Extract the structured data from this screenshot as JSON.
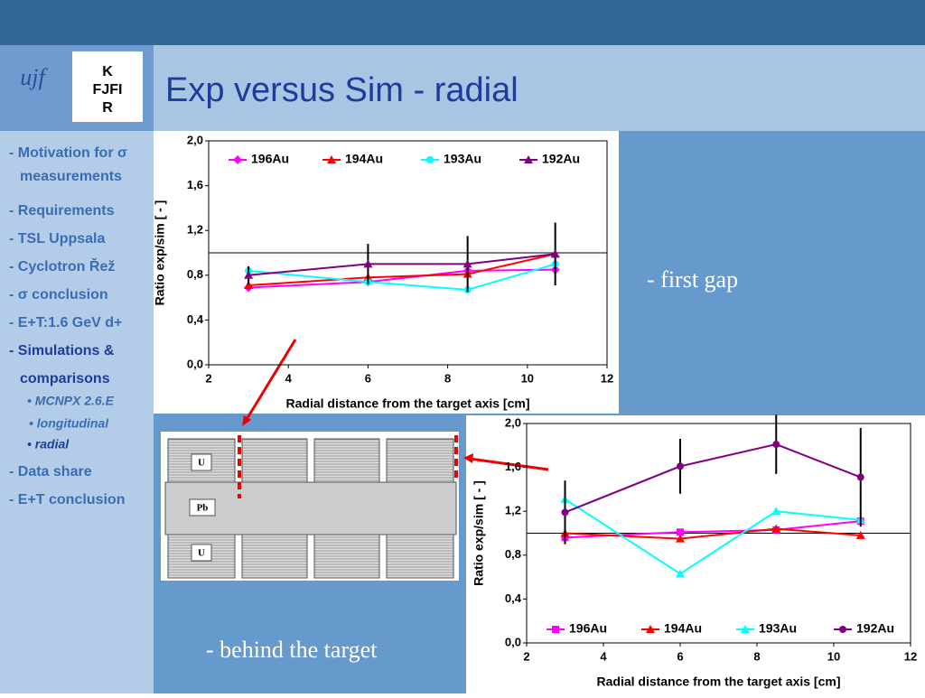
{
  "slide": {
    "title": "Exp versus Sim - radial",
    "logo_left": "ujf",
    "logo_right": [
      "K",
      "FJFI",
      "R"
    ],
    "menu": [
      "- Motivation for σ",
      "measurements",
      "- Requirements",
      "- TSL Uppsala",
      "- Cyclotron Řež",
      "- σ conclusion",
      "- E+T:1.6 GeV d+",
      "- Simulations &",
      "comparisons",
      "• MCNPX 2.6.E",
      "• longitudinal",
      "• radial",
      "- Data share",
      "- E+T conclusion"
    ],
    "note_first": "- first gap",
    "note_behind": "- behind the target",
    "diagram": [
      "U",
      "Pb",
      "U"
    ]
  },
  "chart_data": [
    {
      "type": "line",
      "x_label": "Radial distance from the target axis [cm]",
      "y_label": "Ratio exp/sim [ - ]",
      "legend": "top",
      "hline": 1.0,
      "x": [
        3,
        6,
        8.5,
        10.7
      ],
      "xlim": [
        2,
        12
      ],
      "xticks": [
        2,
        4,
        6,
        8,
        10,
        12
      ],
      "ylim": [
        0,
        2
      ],
      "yticks": [
        {
          "value": 0,
          "label": "0,0"
        },
        {
          "value": 0.4,
          "label": "0,4"
        },
        {
          "value": 0.8,
          "label": "0,8"
        },
        {
          "value": 1.2,
          "label": "1,2"
        },
        {
          "value": 1.6,
          "label": "1,6"
        },
        {
          "value": 2,
          "label": "2,0"
        }
      ],
      "series": [
        {
          "name": "196Au",
          "color": "#ff00ff",
          "marker": "diamond",
          "values": [
            0.69,
            0.74,
            0.84,
            0.85
          ]
        },
        {
          "name": "194Au",
          "color": "#ff0000",
          "marker": "triangle",
          "values": [
            0.71,
            0.78,
            0.81,
            0.99
          ]
        },
        {
          "name": "193Au",
          "color": "#00ffff",
          "marker": "circle",
          "values": [
            0.84,
            0.74,
            0.67,
            0.9
          ]
        },
        {
          "name": "192Au",
          "color": "#800080",
          "marker": "triangle",
          "values": [
            0.8,
            0.9,
            0.9,
            0.99
          ],
          "errors": [
            0.08,
            0.18,
            0.25,
            0.28
          ]
        }
      ]
    },
    {
      "type": "line",
      "x_label": "Radial distance from the target axis [cm]",
      "y_label": "Ratio exp/sim [ - ]",
      "legend": "bottom",
      "hline": 1.0,
      "x": [
        3,
        6,
        8.5,
        10.7
      ],
      "xlim": [
        2,
        12
      ],
      "xticks": [
        2,
        4,
        6,
        8,
        10,
        12
      ],
      "ylim": [
        0,
        2
      ],
      "yticks": [
        {
          "value": 0,
          "label": "0,0"
        },
        {
          "value": 0.4,
          "label": "0,4"
        },
        {
          "value": 0.8,
          "label": "0,8"
        },
        {
          "value": 1.2,
          "label": "1,2"
        },
        {
          "value": 1.6,
          "label": "1,6"
        },
        {
          "value": 2,
          "label": "2,0"
        }
      ],
      "series": [
        {
          "name": "196Au",
          "color": "#ff00ff",
          "marker": "square",
          "values": [
            0.96,
            1.01,
            1.03,
            1.11
          ]
        },
        {
          "name": "194Au",
          "color": "#ff0000",
          "marker": "triangle",
          "values": [
            1.0,
            0.95,
            1.04,
            0.98
          ]
        },
        {
          "name": "193Au",
          "color": "#00ffff",
          "marker": "triangle",
          "values": [
            1.31,
            0.63,
            1.2,
            1.12
          ]
        },
        {
          "name": "192Au",
          "color": "#800080",
          "marker": "circle",
          "values": [
            1.19,
            1.61,
            1.81,
            1.51
          ],
          "errors": [
            0.29,
            0.25,
            0.27,
            0.45
          ]
        }
      ]
    }
  ]
}
